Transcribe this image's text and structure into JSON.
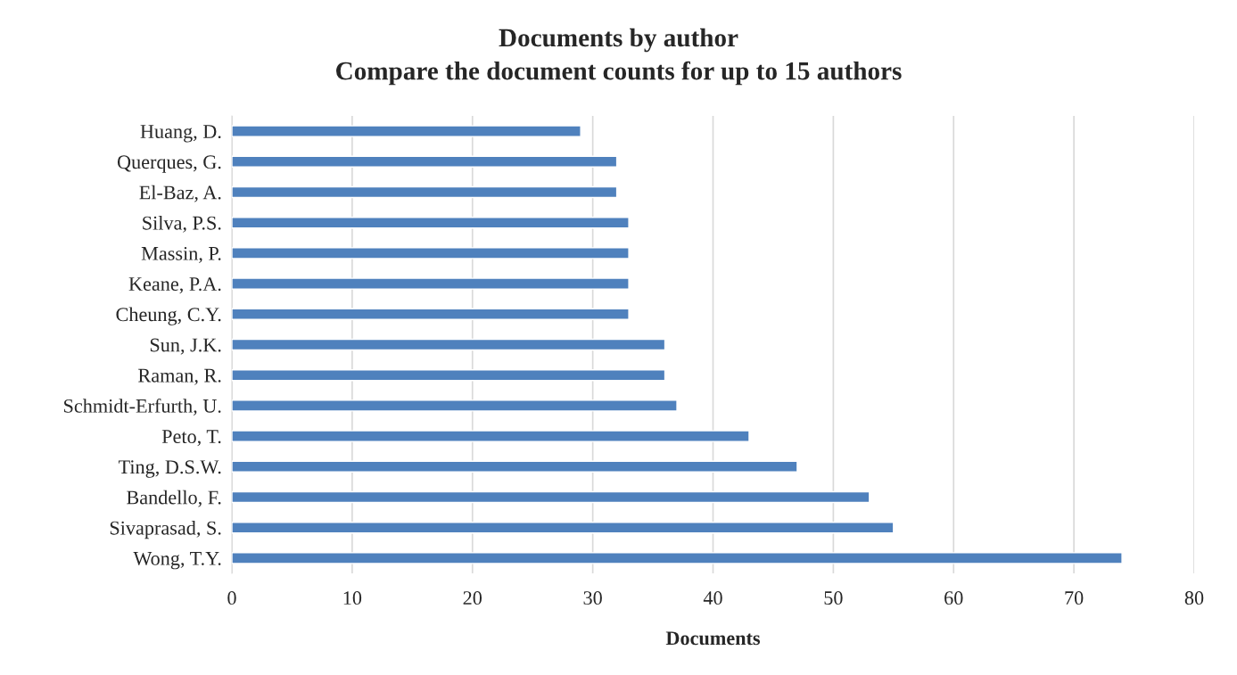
{
  "chart_data": {
    "type": "bar",
    "orientation": "horizontal",
    "title": "Documents by author",
    "subtitle": "Compare the document counts for up to 15 authors",
    "xlabel": "Documents",
    "categories": [
      "Huang, D.",
      "Querques, G.",
      "El-Baz, A.",
      "Silva, P.S.",
      "Massin, P.",
      "Keane, P.A.",
      "Cheung, C.Y.",
      "Sun, J.K.",
      "Raman, R.",
      "Schmidt-Erfurth, U.",
      "Peto, T.",
      "Ting, D.S.W.",
      "Bandello, F.",
      "Sivaprasad, S.",
      "Wong, T.Y."
    ],
    "values": [
      29,
      32,
      32,
      33,
      33,
      33,
      33,
      36,
      36,
      37,
      43,
      47,
      53,
      55,
      74
    ],
    "color": "#4f81bd",
    "xlim": [
      0,
      80
    ],
    "xticks": [
      0,
      10,
      20,
      30,
      40,
      50,
      60,
      70,
      80
    ],
    "grid": "x",
    "legend": false
  }
}
